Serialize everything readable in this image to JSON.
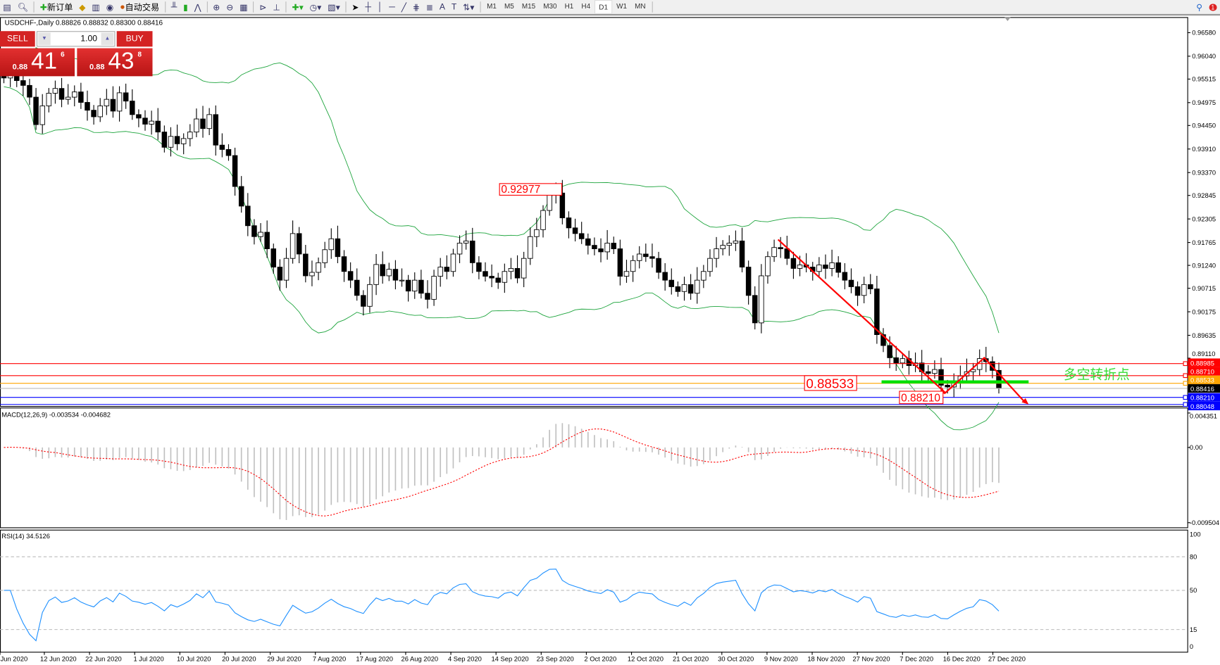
{
  "toolbar": {
    "new_order": "新订单",
    "auto_trading": "自动交易",
    "timeframes": [
      "M1",
      "M5",
      "M15",
      "M30",
      "H1",
      "H4",
      "D1",
      "W1",
      "MN"
    ],
    "active_timeframe": "D1",
    "notification_count": "1",
    "icons": [
      "chart-icon",
      "zoom-chart-icon",
      "new-order-icon",
      "gold-icon",
      "history-icon",
      "signal-icon",
      "auto-trading-icon",
      "bar-chart-icon",
      "candlestick-icon",
      "line-chart-icon",
      "zoom-in-icon",
      "zoom-out-icon",
      "tile-icon",
      "autoscroll-icon",
      "shift-icon",
      "indicators-icon",
      "periods-icon",
      "templates-icon",
      "cursor-icon",
      "crosshair-icon",
      "vertical-line-icon",
      "horizontal-line-icon",
      "trendline-icon",
      "fibonacci-icon",
      "channel-icon",
      "text-icon",
      "text-label-icon",
      "arrows-icon"
    ]
  },
  "chart": {
    "title": "USDCHF-,Daily",
    "ohlc": "0.88826 0.88832 0.88300 0.88416",
    "colors": {
      "band": "#1aa33a",
      "up": "#ffffff",
      "down": "#000000",
      "annotation": "#ff0000",
      "green_line": "#00e000",
      "macd_hist": "#c0c0c0",
      "macd_signal": "#ff0000",
      "rsi": "#1e90ff"
    }
  },
  "one_click": {
    "sell_label": "SELL",
    "buy_label": "BUY",
    "lot": "1.00",
    "sell_small": "0.88",
    "sell_big": "41",
    "sell_exp": "6",
    "buy_small": "0.88",
    "buy_big": "43",
    "buy_exp": "8"
  },
  "price_axis": [
    "0.96580",
    "0.96040",
    "0.95515",
    "0.94975",
    "0.94450",
    "0.93910",
    "0.93370",
    "0.92845",
    "0.92305",
    "0.91765",
    "0.91240",
    "0.90715",
    "0.90175",
    "0.89635",
    "0.89110"
  ],
  "price_lines": [
    {
      "price": "0.88985",
      "color": "#ff0000"
    },
    {
      "price": "0.88710",
      "color": "#ff0000"
    },
    {
      "price": "0.88533",
      "color": "#ffa500"
    },
    {
      "price": "0.88416",
      "color": "#000000",
      "bid": true
    },
    {
      "price": "0.88210",
      "color": "#0000ff"
    },
    {
      "price": "0.88048",
      "color": "#0000ff"
    }
  ],
  "annotations": {
    "high_label": "0.92977",
    "mid_label": "0.88533",
    "low_label": "0.88210",
    "pivot_text": "多空转折点"
  },
  "macd": {
    "label": "MACD(12,26,9) -0.003534 -0.004682",
    "axis": [
      "0.004351",
      "0.00",
      "-0.009504"
    ],
    "range": [
      -0.009504,
      0.004351
    ]
  },
  "rsi": {
    "label": "RSI(14) 34.5126",
    "axis": [
      "100",
      "80",
      "50",
      "15",
      "0"
    ],
    "levels": [
      80,
      50,
      15
    ]
  },
  "date_axis": [
    "Jun 2020",
    "12 Jun 2020",
    "22 Jun 2020",
    "1 Jul 2020",
    "10 Jul 2020",
    "20 Jul 2020",
    "29 Jul 2020",
    "7 Aug 2020",
    "17 Aug 2020",
    "26 Aug 2020",
    "4 Sep 2020",
    "14 Sep 2020",
    "23 Sep 2020",
    "2 Oct 2020",
    "12 Oct 2020",
    "21 Oct 2020",
    "30 Oct 2020",
    "9 Nov 2020",
    "18 Nov 2020",
    "27 Nov 2020",
    "7 Dec 2020",
    "16 Dec 2020",
    "27 Dec 2020"
  ],
  "chart_data": {
    "type": "candlestick",
    "ylim": [
      0.88048,
      0.9658
    ],
    "close": [
      0.9554,
      0.956,
      0.9548,
      0.9537,
      0.951,
      0.9447,
      0.949,
      0.9519,
      0.953,
      0.9505,
      0.951,
      0.9522,
      0.9498,
      0.948,
      0.9465,
      0.949,
      0.9505,
      0.9478,
      0.952,
      0.9501,
      0.947,
      0.9462,
      0.9448,
      0.9455,
      0.943,
      0.9395,
      0.942,
      0.9403,
      0.9415,
      0.943,
      0.946,
      0.9438,
      0.947,
      0.94,
      0.939,
      0.9376,
      0.9305,
      0.926,
      0.9215,
      0.919,
      0.92,
      0.9162,
      0.912,
      0.909,
      0.914,
      0.9197,
      0.915,
      0.91,
      0.9108,
      0.913,
      0.916,
      0.9185,
      0.9144,
      0.911,
      0.909,
      0.9055,
      0.903,
      0.908,
      0.9126,
      0.91,
      0.9115,
      0.909,
      0.909,
      0.9065,
      0.909,
      0.906,
      0.9046,
      0.9099,
      0.912,
      0.911,
      0.915,
      0.9175,
      0.918,
      0.913,
      0.911,
      0.9099,
      0.9095,
      0.9085,
      0.911,
      0.9117,
      0.9095,
      0.914,
      0.919,
      0.9206,
      0.925,
      0.9287,
      0.929,
      0.9233,
      0.921,
      0.9197,
      0.9185,
      0.917,
      0.9162,
      0.9155,
      0.9175,
      0.9162,
      0.9099,
      0.911,
      0.9135,
      0.915,
      0.9144,
      0.914,
      0.9108,
      0.909,
      0.9075,
      0.9064,
      0.908,
      0.906,
      0.909,
      0.911,
      0.914,
      0.9162,
      0.917,
      0.9175,
      0.918,
      0.912,
      0.9055,
      0.8992,
      0.91,
      0.9144,
      0.9165,
      0.9162,
      0.914,
      0.9117,
      0.9125,
      0.912,
      0.911,
      0.9125,
      0.9117,
      0.913,
      0.9108,
      0.909,
      0.9075,
      0.9055,
      0.908,
      0.907,
      0.8965,
      0.894,
      0.8912,
      0.89,
      0.891,
      0.8894,
      0.89,
      0.888,
      0.8876,
      0.8885,
      0.8849,
      0.8845,
      0.8858,
      0.887,
      0.888,
      0.8885,
      0.891,
      0.8903,
      0.8883,
      0.8842
    ],
    "indicators": [
      "Bollinger Bands (20,2)",
      "MACD(12,26,9)",
      "RSI(14)"
    ]
  }
}
